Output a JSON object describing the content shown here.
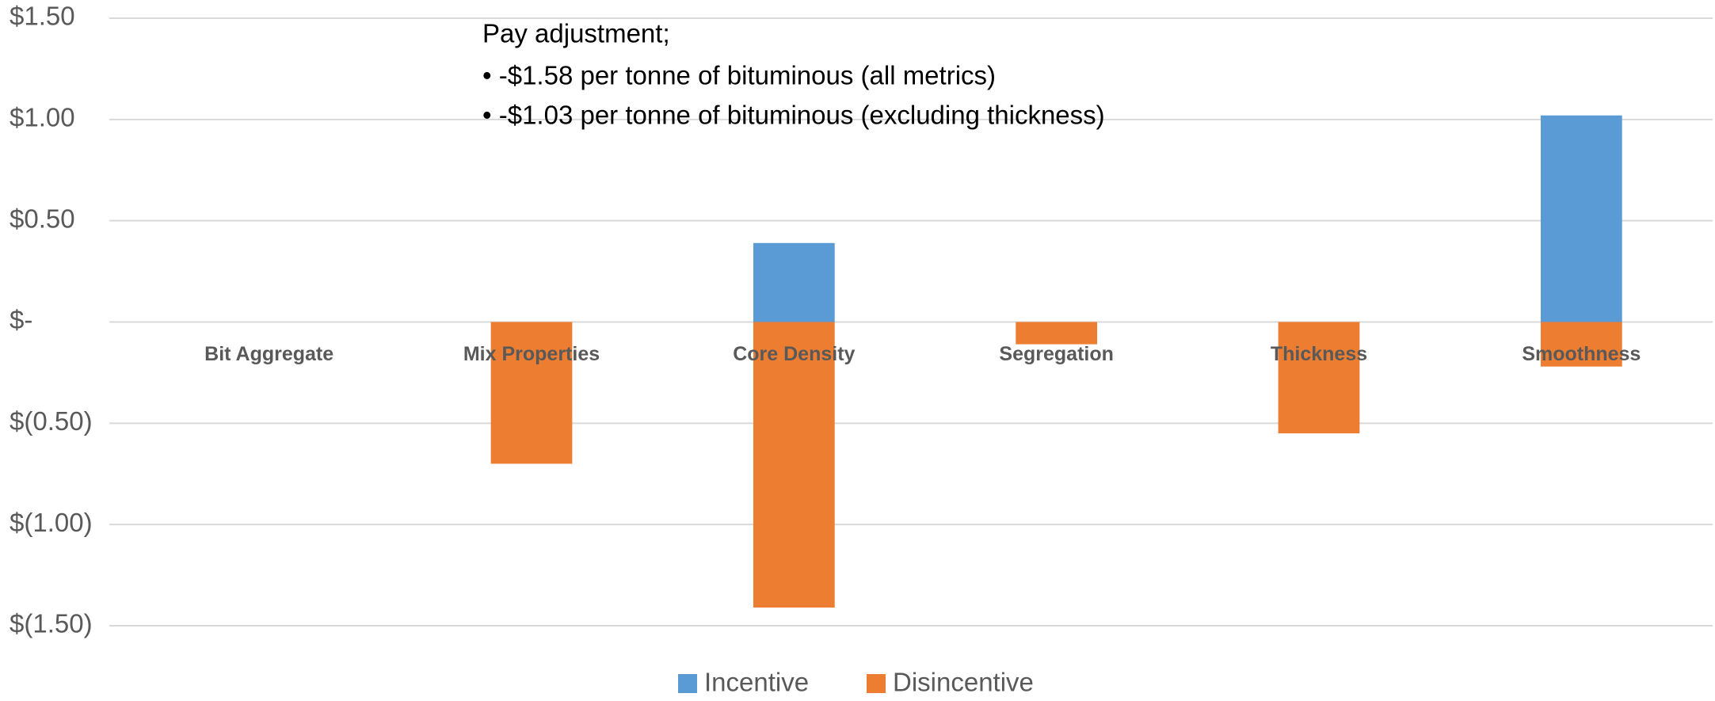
{
  "chart_data": {
    "type": "stacked_bar",
    "annotations": [
      "Pay adjustment;",
      "• -$1.58 per tonne of bituminous (all metrics)",
      "• -$1.03 per tonne of bituminous (excluding thickness)"
    ],
    "categories": [
      "Bit Aggregate",
      "Mix Properties",
      "Core Density",
      "Segregation",
      "Thickness",
      "Smoothness"
    ],
    "series": [
      {
        "name": "Incentive",
        "color": "#5b9bd5",
        "values": [
          0,
          0,
          0.39,
          0,
          0,
          1.02
        ]
      },
      {
        "name": "Disincentive",
        "color": "#ed7d31",
        "values": [
          0,
          -0.7,
          -1.41,
          -0.11,
          -0.55,
          -0.22
        ]
      }
    ],
    "ylim": [
      -1.5,
      1.5
    ],
    "yticks": [
      {
        "value": 1.5,
        "label": "$1.50"
      },
      {
        "value": 1.0,
        "label": "$1.00"
      },
      {
        "value": 0.5,
        "label": "$0.50"
      },
      {
        "value": 0,
        "label": "$-"
      },
      {
        "value": -0.5,
        "label": "$(0.50)"
      },
      {
        "value": -1.0,
        "label": "$(1.00)"
      },
      {
        "value": -1.5,
        "label": "$(1.50)"
      }
    ],
    "grid": true,
    "legend": "bottom"
  }
}
